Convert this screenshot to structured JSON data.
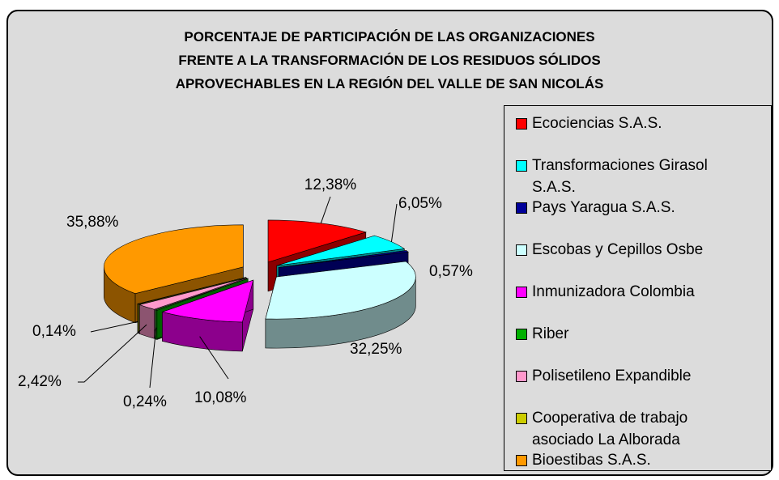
{
  "chart_data": {
    "type": "pie3d",
    "title": [
      "PORCENTAJE DE PARTICIPACIÓN DE LAS ORGANIZACIONES",
      "FRENTE A LA TRANSFORMACIÓN DE LOS RESIDUOS SÓLIDOS",
      "APROVECHABLES EN LA REGIÓN DEL VALLE DE SAN NICOLÁS"
    ],
    "categories": [
      "Ecociencias S.A.S.",
      "Transformaciones Girasol S.A.S.",
      "Pays Yaragua S.A.S.",
      "Escobas y Cepillos Osbe",
      "Inmunizadora Colombia",
      "Riber",
      "Polisetileno Expandible",
      "Cooperativa de trabajo asociado La Alborada",
      "Bioestibas S.A.S."
    ],
    "values": [
      12.38,
      6.05,
      0.57,
      32.25,
      10.08,
      0.24,
      2.42,
      0.14,
      35.88
    ],
    "value_labels": [
      "12,38%",
      "6,05%",
      "0,57%",
      "32,25%",
      "10,08%",
      "0,24%",
      "2,42%",
      "0,14%",
      "35,88%"
    ],
    "colors": [
      "#ff0000",
      "#00ffff",
      "#000099",
      "#ccffff",
      "#ff00ff",
      "#00b000",
      "#ff99cc",
      "#cccc00",
      "#ff9900"
    ],
    "legend": "right"
  }
}
